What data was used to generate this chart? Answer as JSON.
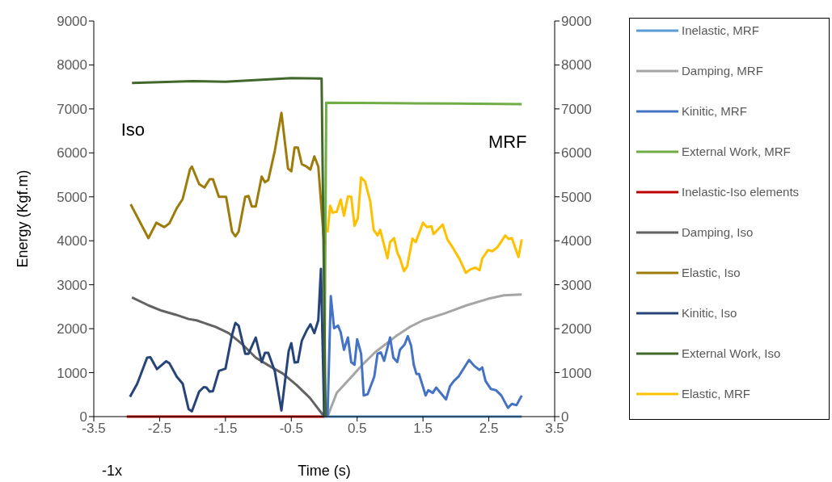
{
  "chart_data": {
    "type": "line",
    "xlabel": "Time (s)",
    "ylabel": "Energy (Kgf.m)",
    "xlim": [
      -3.5,
      3.5
    ],
    "xticks": [
      -3.5,
      -2.5,
      -1.5,
      -0.5,
      0.5,
      1.5,
      2.5,
      3.5
    ],
    "ylim": [
      0,
      9000
    ],
    "yticks": [
      0,
      1000,
      2000,
      3000,
      4000,
      5000,
      6000,
      7000,
      8000,
      9000
    ],
    "y2lim": [
      0,
      9000
    ],
    "y2ticks": [
      0,
      1000,
      2000,
      3000,
      4000,
      5000,
      6000,
      7000,
      8000,
      9000
    ],
    "grid": false,
    "legend": "right",
    "line_style": "solid",
    "annotations": [
      "Iso",
      "MRF",
      "-1x"
    ],
    "series": [
      {
        "name": "Inelastic, MRF",
        "color": "#5b9bd5",
        "x": [
          0,
          1,
          2,
          3
        ],
        "values": [
          0,
          0,
          0,
          0
        ]
      },
      {
        "name": "Damping, MRF",
        "color": "#a5a5a5",
        "x": [
          0.05,
          0.19,
          0.4,
          0.56,
          0.77,
          1.09,
          1.3,
          1.5,
          1.83,
          2.16,
          2.49,
          2.73,
          3.0
        ],
        "values": [
          0,
          540,
          880,
          1150,
          1460,
          1830,
          2040,
          2190,
          2350,
          2530,
          2680,
          2760,
          2780
        ]
      },
      {
        "name": "Kinitic, MRF",
        "color": "#4472c4",
        "x": [
          0.05,
          0.1,
          0.15,
          0.21,
          0.25,
          0.3,
          0.36,
          0.41,
          0.46,
          0.5,
          0.56,
          0.6,
          0.66,
          0.76,
          0.81,
          0.86,
          0.91,
          1.0,
          1.05,
          1.11,
          1.15,
          1.22,
          1.27,
          1.32,
          1.36,
          1.4,
          1.44,
          1.54,
          1.58,
          1.65,
          1.7,
          1.85,
          1.91,
          1.97,
          2.04,
          2.2,
          2.28,
          2.36,
          2.4,
          2.45,
          2.53,
          2.61,
          2.69,
          2.79,
          2.85,
          2.92,
          3.0
        ],
        "values": [
          0,
          2740,
          2010,
          2070,
          1920,
          1520,
          1800,
          1240,
          1180,
          1760,
          1430,
          480,
          510,
          910,
          1430,
          1460,
          1270,
          1800,
          1340,
          1240,
          1520,
          1640,
          1830,
          1610,
          1180,
          970,
          970,
          480,
          600,
          540,
          660,
          390,
          690,
          810,
          910,
          1290,
          1150,
          1060,
          1120,
          810,
          630,
          600,
          480,
          200,
          290,
          260,
          480
        ]
      },
      {
        "name": "External Work, MRF",
        "color": "#70ad47",
        "x": [
          0.0,
          0.03,
          1,
          2,
          3
        ],
        "values": [
          0,
          7140,
          7130,
          7120,
          7110
        ]
      },
      {
        "name": "Inelastic-Iso elements",
        "color": "#c00000",
        "x": [
          -3,
          -2,
          -1,
          0
        ],
        "values": [
          0,
          0,
          0,
          0
        ]
      },
      {
        "name": "Damping, Iso",
        "color": "#636363",
        "x": [
          -2.92,
          -2.67,
          -2.47,
          -2.26,
          -2.06,
          -1.94,
          -1.65,
          -1.45,
          -1.24,
          -1.04,
          -0.83,
          -0.63,
          -0.42,
          -0.22,
          0.0
        ],
        "values": [
          2710,
          2530,
          2410,
          2320,
          2220,
          2190,
          2040,
          1900,
          1640,
          1340,
          1150,
          980,
          720,
          430,
          0
        ]
      },
      {
        "name": "Elastic, Iso",
        "color": "#9e7c0c",
        "x": [
          -2.94,
          -2.67,
          -2.55,
          -2.43,
          -2.35,
          -2.24,
          -2.15,
          -2.04,
          -2.01,
          -1.9,
          -1.82,
          -1.74,
          -1.69,
          -1.6,
          -1.49,
          -1.4,
          -1.35,
          -1.3,
          -1.2,
          -1.15,
          -1.1,
          -1.04,
          -0.95,
          -0.9,
          -0.85,
          -0.75,
          -0.65,
          -0.55,
          -0.5,
          -0.45,
          -0.4,
          -0.34,
          -0.27,
          -0.21,
          -0.15,
          -0.09,
          0.0
        ],
        "values": [
          4830,
          4060,
          4410,
          4310,
          4400,
          4740,
          4950,
          5620,
          5690,
          5290,
          5210,
          5400,
          5400,
          5000,
          5000,
          4210,
          4100,
          4210,
          5000,
          5020,
          4780,
          4780,
          5460,
          5330,
          5380,
          6050,
          6910,
          5640,
          5580,
          6120,
          6120,
          5740,
          5690,
          5620,
          5920,
          5690,
          3910
        ]
      },
      {
        "name": "Kinitic, Iso",
        "color": "#264478",
        "x": [
          -2.95,
          -2.84,
          -2.69,
          -2.64,
          -2.54,
          -2.4,
          -2.35,
          -2.24,
          -2.15,
          -2.06,
          -2.01,
          -1.9,
          -1.83,
          -1.79,
          -1.74,
          -1.69,
          -1.6,
          -1.5,
          -1.4,
          -1.35,
          -1.3,
          -1.2,
          -1.15,
          -1.04,
          -0.95,
          -0.9,
          -0.85,
          -0.75,
          -0.65,
          -0.54,
          -0.5,
          -0.45,
          -0.4,
          -0.34,
          -0.27,
          -0.21,
          -0.15,
          -0.09,
          -0.05,
          0.0
        ],
        "values": [
          450,
          750,
          1340,
          1350,
          1080,
          1260,
          1210,
          910,
          750,
          170,
          120,
          570,
          670,
          660,
          570,
          580,
          1040,
          1090,
          1860,
          2130,
          2070,
          1430,
          1430,
          1800,
          1240,
          1450,
          1450,
          1030,
          140,
          1490,
          1670,
          1230,
          1240,
          1730,
          1950,
          2100,
          1900,
          2190,
          3360,
          0
        ]
      },
      {
        "name": "External Work, Iso",
        "color": "#43682b",
        "x": [
          -2.92,
          -2.5,
          -2,
          -1.5,
          -1,
          -0.5,
          -0.04,
          0.02
        ],
        "values": [
          7590,
          7610,
          7630,
          7620,
          7660,
          7700,
          7690,
          0
        ]
      },
      {
        "name": "Elastic, MRF",
        "color": "#ffc000",
        "x": [
          0.05,
          0.09,
          0.13,
          0.19,
          0.25,
          0.3,
          0.36,
          0.41,
          0.46,
          0.51,
          0.56,
          0.62,
          0.7,
          0.75,
          0.81,
          0.85,
          0.96,
          1.0,
          1.06,
          1.11,
          1.15,
          1.21,
          1.26,
          1.34,
          1.39,
          1.5,
          1.56,
          1.63,
          1.66,
          1.8,
          1.87,
          1.95,
          2.06,
          2.15,
          2.22,
          2.3,
          2.36,
          2.4,
          2.49,
          2.55,
          2.63,
          2.75,
          2.8,
          2.85,
          2.95,
          3.0
        ],
        "values": [
          4190,
          4800,
          4640,
          4660,
          4940,
          4570,
          5010,
          5000,
          4340,
          4510,
          5440,
          5350,
          4890,
          4250,
          4120,
          4250,
          3600,
          3970,
          4060,
          3730,
          3600,
          3310,
          3420,
          4050,
          3970,
          4410,
          4310,
          4330,
          4150,
          4370,
          4030,
          3850,
          3570,
          3270,
          3350,
          3390,
          3330,
          3600,
          3790,
          3760,
          3850,
          4120,
          4040,
          4060,
          3630,
          4030
        ]
      }
    ]
  }
}
